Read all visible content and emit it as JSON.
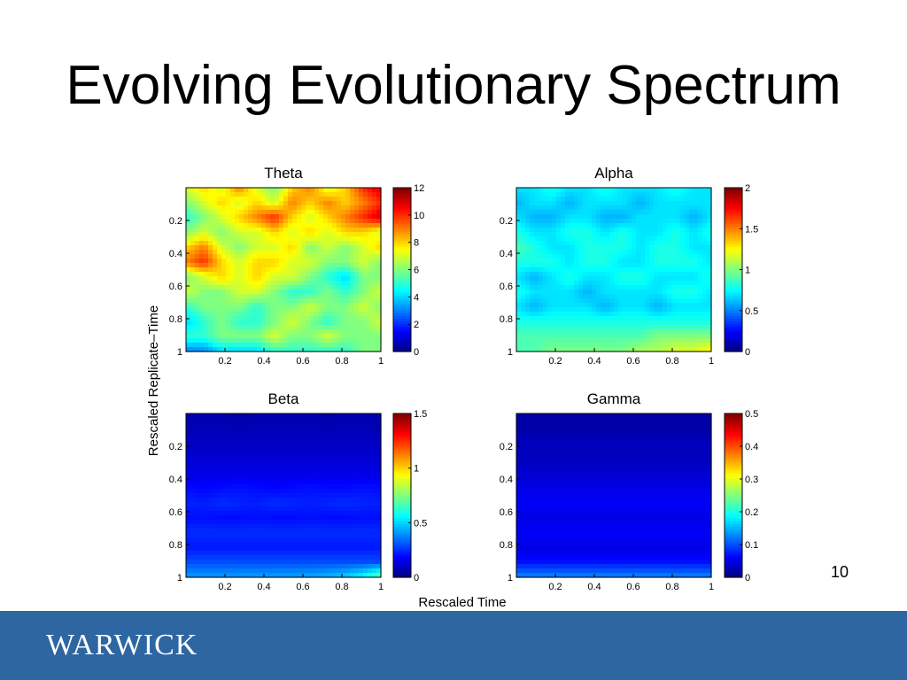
{
  "slide": {
    "title": "Evolving Evolutionary Spectrum",
    "page_number": "10",
    "footer_logo": "WARWICK",
    "footer_color": "#2d66a1"
  },
  "figure": {
    "shared_ylabel": "Rescaled Replicate–Time",
    "shared_xlabel": "Rescaled Time"
  },
  "chart_data": [
    {
      "type": "heatmap",
      "title": "Theta",
      "x_ticks": [
        "0.2",
        "0.4",
        "0.6",
        "0.8",
        "1"
      ],
      "y_ticks": [
        "0.2",
        "0.4",
        "0.6",
        "0.8",
        "1"
      ],
      "x_range": [
        0,
        1
      ],
      "y_range": [
        0,
        1
      ],
      "colormap": "jet",
      "colorbar": {
        "min": 0,
        "max": 12,
        "ticks": [
          "0",
          "2",
          "4",
          "6",
          "8",
          "10",
          "12"
        ]
      },
      "values": [
        [
          7,
          8,
          7,
          9,
          7,
          6,
          8,
          9,
          7,
          8,
          10,
          11
        ],
        [
          6,
          7,
          8,
          7,
          8,
          7,
          9,
          8,
          9,
          8,
          9,
          10
        ],
        [
          5,
          6,
          7,
          8,
          9,
          10,
          8,
          7,
          8,
          9,
          10,
          11
        ],
        [
          6,
          7,
          6,
          7,
          7,
          8,
          7,
          8,
          7,
          8,
          8,
          7
        ],
        [
          8,
          9,
          7,
          6,
          7,
          7,
          8,
          6,
          7,
          6,
          7,
          8
        ],
        [
          9,
          10,
          8,
          7,
          8,
          8,
          7,
          7,
          6,
          6,
          7,
          6
        ],
        [
          6,
          7,
          8,
          7,
          8,
          7,
          7,
          6,
          5,
          4,
          6,
          6
        ],
        [
          7,
          6,
          6,
          7,
          7,
          6,
          5,
          5,
          6,
          5,
          6,
          7
        ],
        [
          5,
          6,
          6,
          6,
          5,
          6,
          6,
          7,
          6,
          6,
          7,
          6
        ],
        [
          4,
          5,
          6,
          5,
          5,
          6,
          7,
          6,
          5,
          6,
          6,
          7
        ],
        [
          5,
          5,
          6,
          6,
          6,
          7,
          6,
          6,
          7,
          6,
          6,
          6
        ],
        [
          3,
          3,
          4,
          4,
          4,
          5,
          5,
          5,
          5,
          5,
          6,
          6
        ]
      ]
    },
    {
      "type": "heatmap",
      "title": "Alpha",
      "x_ticks": [
        "0.2",
        "0.4",
        "0.6",
        "0.8",
        "1"
      ],
      "y_ticks": [
        "0.2",
        "0.4",
        "0.6",
        "0.8",
        "1"
      ],
      "x_range": [
        0,
        1
      ],
      "y_range": [
        0,
        1
      ],
      "colormap": "jet",
      "colorbar": {
        "min": 0,
        "max": 2,
        "ticks": [
          "0",
          "0.5",
          "1",
          "1.5",
          "2"
        ]
      },
      "values": [
        [
          0.7,
          0.7,
          0.8,
          0.7,
          0.7,
          0.8,
          0.7,
          0.7,
          0.7,
          0.8,
          0.7,
          0.7
        ],
        [
          0.6,
          0.7,
          0.7,
          0.6,
          0.7,
          0.7,
          0.7,
          0.6,
          0.7,
          0.7,
          0.7,
          0.7
        ],
        [
          0.7,
          0.6,
          0.6,
          0.7,
          0.7,
          0.6,
          0.6,
          0.7,
          0.7,
          0.7,
          0.6,
          0.7
        ],
        [
          0.8,
          0.7,
          0.7,
          0.8,
          0.8,
          0.7,
          0.8,
          0.7,
          0.7,
          0.8,
          0.7,
          0.8
        ],
        [
          0.9,
          0.8,
          0.7,
          0.7,
          0.8,
          0.8,
          0.8,
          0.7,
          0.8,
          0.8,
          0.7,
          0.7
        ],
        [
          0.8,
          0.8,
          0.8,
          0.7,
          0.8,
          0.8,
          0.7,
          0.7,
          0.8,
          0.8,
          0.8,
          0.7
        ],
        [
          0.7,
          0.6,
          0.7,
          0.8,
          0.7,
          0.7,
          0.8,
          0.8,
          0.7,
          0.7,
          0.7,
          0.8
        ],
        [
          0.8,
          0.7,
          0.7,
          0.7,
          0.6,
          0.7,
          0.7,
          0.7,
          0.7,
          0.8,
          0.8,
          0.7
        ],
        [
          0.7,
          0.6,
          0.7,
          0.7,
          0.7,
          0.6,
          0.7,
          0.7,
          0.6,
          0.7,
          0.7,
          0.7
        ],
        [
          0.8,
          0.8,
          0.8,
          0.8,
          0.8,
          0.8,
          0.8,
          0.8,
          0.8,
          0.8,
          0.8,
          0.8
        ],
        [
          0.9,
          0.9,
          0.9,
          0.9,
          0.9,
          0.9,
          0.9,
          0.9,
          1.0,
          1.0,
          1.0,
          1.0
        ],
        [
          0.9,
          0.9,
          1.0,
          1.0,
          1.0,
          1.0,
          1.0,
          1.1,
          1.1,
          1.2,
          1.2,
          1.3
        ]
      ]
    },
    {
      "type": "heatmap",
      "title": "Beta",
      "x_ticks": [
        "0.2",
        "0.4",
        "0.6",
        "0.8",
        "1"
      ],
      "y_ticks": [
        "0.2",
        "0.4",
        "0.6",
        "0.8",
        "1"
      ],
      "x_range": [
        0,
        1
      ],
      "y_range": [
        0,
        1
      ],
      "colormap": "jet",
      "colorbar": {
        "min": 0,
        "max": 1.5,
        "ticks": [
          "0",
          "0.5",
          "1",
          "1.5"
        ]
      },
      "values": [
        [
          0.07,
          0.07,
          0.07,
          0.06,
          0.07,
          0.07,
          0.07,
          0.07,
          0.06,
          0.07,
          0.07,
          0.07
        ],
        [
          0.08,
          0.08,
          0.08,
          0.08,
          0.08,
          0.08,
          0.08,
          0.08,
          0.08,
          0.08,
          0.08,
          0.08
        ],
        [
          0.1,
          0.1,
          0.1,
          0.1,
          0.1,
          0.1,
          0.1,
          0.1,
          0.1,
          0.1,
          0.1,
          0.1
        ],
        [
          0.12,
          0.12,
          0.12,
          0.12,
          0.12,
          0.12,
          0.12,
          0.12,
          0.12,
          0.12,
          0.12,
          0.12
        ],
        [
          0.15,
          0.15,
          0.15,
          0.15,
          0.15,
          0.15,
          0.15,
          0.15,
          0.15,
          0.15,
          0.15,
          0.15
        ],
        [
          0.2,
          0.19,
          0.2,
          0.21,
          0.2,
          0.19,
          0.2,
          0.21,
          0.2,
          0.2,
          0.21,
          0.2
        ],
        [
          0.24,
          0.23,
          0.25,
          0.24,
          0.23,
          0.25,
          0.24,
          0.23,
          0.24,
          0.25,
          0.24,
          0.23
        ],
        [
          0.2,
          0.21,
          0.2,
          0.2,
          0.21,
          0.2,
          0.2,
          0.21,
          0.2,
          0.2,
          0.21,
          0.2
        ],
        [
          0.25,
          0.25,
          0.25,
          0.25,
          0.25,
          0.25,
          0.25,
          0.25,
          0.25,
          0.25,
          0.25,
          0.25
        ],
        [
          0.22,
          0.22,
          0.22,
          0.22,
          0.22,
          0.22,
          0.22,
          0.22,
          0.22,
          0.22,
          0.22,
          0.22
        ],
        [
          0.3,
          0.3,
          0.3,
          0.3,
          0.3,
          0.3,
          0.3,
          0.3,
          0.3,
          0.3,
          0.3,
          0.3
        ],
        [
          0.42,
          0.42,
          0.42,
          0.42,
          0.43,
          0.43,
          0.43,
          0.44,
          0.46,
          0.5,
          0.58,
          0.75
        ]
      ]
    },
    {
      "type": "heatmap",
      "title": "Gamma",
      "x_ticks": [
        "0.2",
        "0.4",
        "0.6",
        "0.8",
        "1"
      ],
      "y_ticks": [
        "0.2",
        "0.4",
        "0.6",
        "0.8",
        "1"
      ],
      "x_range": [
        0,
        1
      ],
      "y_range": [
        0,
        1
      ],
      "colormap": "jet",
      "colorbar": {
        "min": 0,
        "max": 0.5,
        "ticks": [
          "0",
          "0.1",
          "0.2",
          "0.3",
          "0.4",
          "0.5"
        ]
      },
      "values": [
        [
          0.02,
          0.02,
          0.02,
          0.02,
          0.02,
          0.02,
          0.02,
          0.02,
          0.02,
          0.02,
          0.02,
          0.02
        ],
        [
          0.02,
          0.02,
          0.02,
          0.02,
          0.02,
          0.02,
          0.02,
          0.02,
          0.02,
          0.02,
          0.02,
          0.02
        ],
        [
          0.03,
          0.03,
          0.03,
          0.03,
          0.03,
          0.03,
          0.03,
          0.03,
          0.03,
          0.03,
          0.03,
          0.03
        ],
        [
          0.03,
          0.03,
          0.03,
          0.03,
          0.03,
          0.03,
          0.03,
          0.03,
          0.03,
          0.03,
          0.03,
          0.03
        ],
        [
          0.04,
          0.04,
          0.04,
          0.04,
          0.04,
          0.04,
          0.04,
          0.04,
          0.04,
          0.04,
          0.04,
          0.04
        ],
        [
          0.05,
          0.05,
          0.05,
          0.05,
          0.05,
          0.05,
          0.05,
          0.05,
          0.05,
          0.05,
          0.05,
          0.05
        ],
        [
          0.06,
          0.06,
          0.06,
          0.06,
          0.06,
          0.06,
          0.06,
          0.06,
          0.06,
          0.06,
          0.06,
          0.06
        ],
        [
          0.05,
          0.05,
          0.05,
          0.05,
          0.05,
          0.05,
          0.05,
          0.05,
          0.05,
          0.05,
          0.05,
          0.05
        ],
        [
          0.06,
          0.06,
          0.06,
          0.06,
          0.06,
          0.06,
          0.06,
          0.06,
          0.06,
          0.06,
          0.06,
          0.06
        ],
        [
          0.05,
          0.05,
          0.05,
          0.05,
          0.05,
          0.05,
          0.05,
          0.05,
          0.05,
          0.05,
          0.05,
          0.05
        ],
        [
          0.07,
          0.07,
          0.07,
          0.07,
          0.07,
          0.07,
          0.07,
          0.07,
          0.07,
          0.07,
          0.07,
          0.07
        ],
        [
          0.13,
          0.13,
          0.13,
          0.13,
          0.13,
          0.13,
          0.13,
          0.13,
          0.13,
          0.13,
          0.13,
          0.13
        ]
      ]
    }
  ]
}
